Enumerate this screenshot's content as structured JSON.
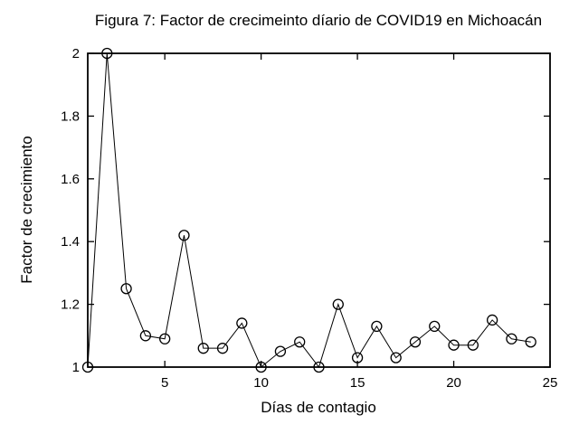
{
  "figure": {
    "background_color": "#ffffff",
    "ink_color": "#000000"
  },
  "chart_data": {
    "type": "line",
    "title": "Figura 7: Factor de crecimeinto díario de COVID19 en Michoacán",
    "xlabel": "Días de contagio",
    "ylabel": "Factor de crecimiento",
    "x": [
      1,
      2,
      3,
      4,
      5,
      6,
      7,
      8,
      9,
      10,
      11,
      12,
      13,
      14,
      15,
      16,
      17,
      18,
      19,
      20,
      21,
      22,
      23,
      24
    ],
    "y": [
      1.0,
      2.0,
      1.25,
      1.1,
      1.09,
      1.42,
      1.06,
      1.06,
      1.14,
      1.0,
      1.05,
      1.08,
      1.0,
      1.2,
      1.03,
      1.13,
      1.03,
      1.08,
      1.13,
      1.07,
      1.07,
      1.15,
      1.09,
      1.08
    ],
    "xlim": [
      1,
      25
    ],
    "ylim": [
      1,
      2
    ],
    "xticks": {
      "values": [
        5,
        10,
        15,
        20,
        25
      ],
      "labels": [
        "5",
        "10",
        "15",
        "20",
        "25"
      ]
    },
    "yticks": {
      "values": [
        1,
        1.2,
        1.4,
        1.6,
        1.8,
        2
      ],
      "labels": [
        "1",
        "1.2",
        "1.4",
        "1.6",
        "1.8",
        "2"
      ]
    },
    "grid": false,
    "legend": "none",
    "marker": "open-circle",
    "line_color": "#000000",
    "marker_color": "#000000"
  }
}
